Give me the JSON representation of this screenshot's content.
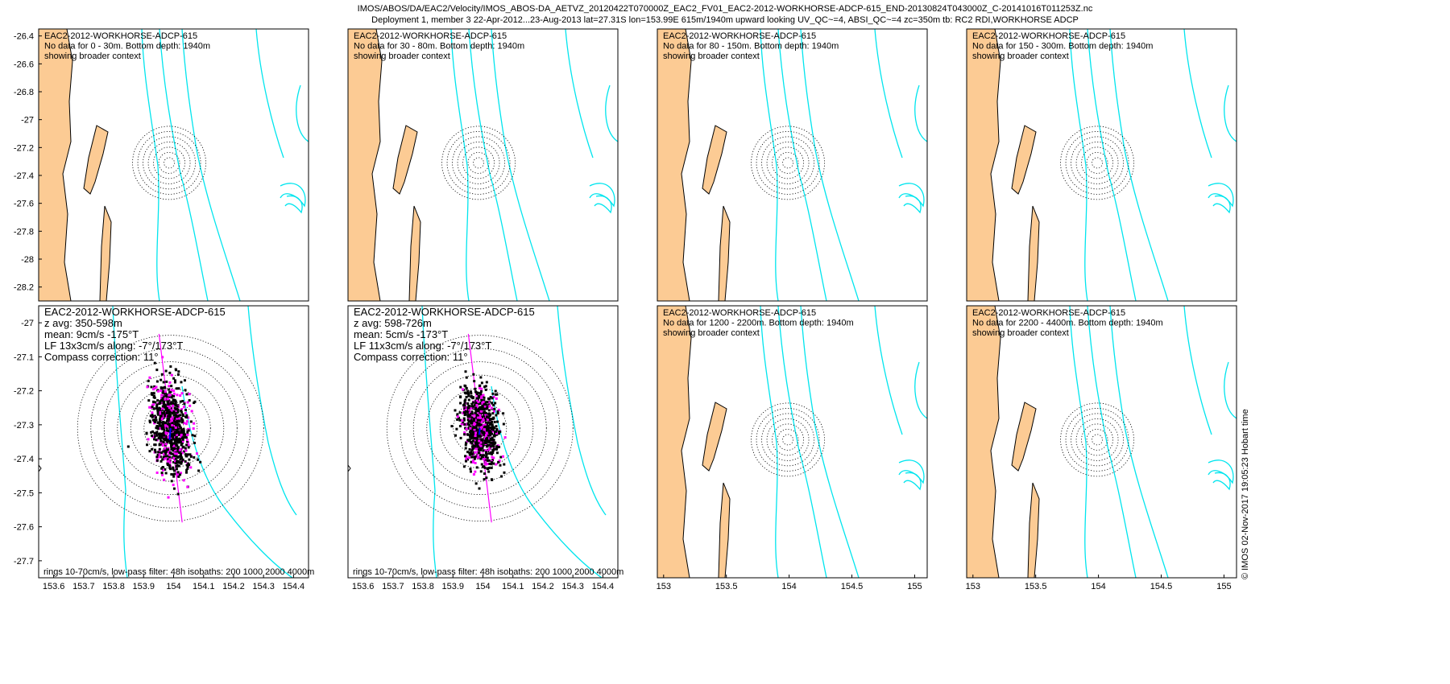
{
  "header": {
    "line1": "IMOS/ABOS/DA/EAC2/Velocity/IMOS_ABOS-DA_AETVZ_20120422T070000Z_EAC2_FV01_EAC2-2012-WORKHORSE-ADCP-615_END-20130824T043000Z_C-20141016T011253Z.nc",
    "line2": "Deployment 1, member 3 22-Apr-2012...23-Aug-2013 lat=27.31S lon=153.99E 615m/1940m upward looking UV_QC~=4, ABSI_QC~=4 zc=350m tb: RC2 RDI,WORKHORSE ADCP"
  },
  "credit": "© IMOS 02-Nov-2017 19:05:23 Hobart time",
  "colors": {
    "land": "#fccb94",
    "isobath": "#00e5ee",
    "ellipse": "#ff00ff",
    "points": "#000000",
    "mean": "#0000ff"
  },
  "chart_data": [
    {
      "type": "scatter",
      "panel": "map",
      "lines": [
        "EAC2-2012-WORKHORSE-ADCP-615",
        "No data for 0 - 30m. Bottom depth: 1940m",
        "showing broader context"
      ],
      "xlim": [
        152.95,
        155.1
      ],
      "ylim": [
        -28.3,
        -26.35
      ],
      "xticks": [],
      "yticks": [
        -26.4,
        -26.6,
        -26.8,
        -27,
        -27.2,
        -27.4,
        -27.6,
        -27.8,
        -28,
        -28.2
      ],
      "ytick_labels": [
        "-26.4",
        "-26.6",
        "-26.8",
        "-27",
        "-27.2",
        "-27.4",
        "-27.6",
        "-27.8",
        "-28",
        "-28.2"
      ]
    },
    {
      "type": "scatter",
      "panel": "map",
      "lines": [
        "EAC2-2012-WORKHORSE-ADCP-615",
        "No data for 30 - 80m. Bottom depth: 1940m",
        "showing broader context"
      ],
      "xlim": [
        152.95,
        155.1
      ],
      "ylim": [
        -28.3,
        -26.35
      ],
      "xticks": [],
      "yticks": []
    },
    {
      "type": "scatter",
      "panel": "map",
      "lines": [
        "EAC2-2012-WORKHORSE-ADCP-615",
        "No data for 80 - 150m. Bottom depth: 1940m",
        "showing broader context"
      ],
      "xlim": [
        152.95,
        155.1
      ],
      "ylim": [
        -28.3,
        -26.35
      ],
      "xticks": [],
      "yticks": []
    },
    {
      "type": "scatter",
      "panel": "map",
      "lines": [
        "EAC2-2012-WORKHORSE-ADCP-615",
        "No data for 150 - 300m. Bottom depth: 1940m",
        "showing broader context"
      ],
      "xlim": [
        152.95,
        155.1
      ],
      "ylim": [
        -28.3,
        -26.35
      ],
      "xticks": [],
      "yticks": []
    },
    {
      "type": "scatter",
      "panel": "zoom",
      "lines": [
        "EAC2-2012-WORKHORSE-ADCP-615",
        "z avg: 350-598m",
        "mean: 9cm/s -175°T",
        "LF 13x3cm/s along: -7°/173°T",
        "Compass correction: 11°"
      ],
      "footer": "rings 10-70cm/s, low-pass filter: 48h isobaths: 200 1000 2000 4000m",
      "mean_speed_cms": 9,
      "mean_dir_deg": -175,
      "ellipse_major_cms": 13,
      "ellipse_minor_cms": 3,
      "along_dir_deg": -7,
      "xlim": [
        153.55,
        154.45
      ],
      "ylim": [
        -27.75,
        -26.95
      ],
      "xticks": [
        153.6,
        153.7,
        153.8,
        153.9,
        154,
        154.1,
        154.2,
        154.3,
        154.4
      ],
      "xtick_labels": [
        "153.6",
        "153.7",
        "153.8",
        "153.9",
        "154",
        "154.1",
        "154.2",
        "154.3",
        "154.4"
      ],
      "yticks": [
        -27,
        -27.1,
        -27.2,
        -27.3,
        -27.4,
        -27.5,
        -27.6,
        -27.7
      ],
      "ytick_labels": [
        "-27",
        "-27.1",
        "-27.2",
        "-27.3",
        "-27.4",
        "-27.5",
        "-27.6",
        "-27.7"
      ],
      "rings_cms": [
        10,
        20,
        30,
        40,
        50,
        60,
        70
      ],
      "center": [
        153.99,
        -27.31
      ]
    },
    {
      "type": "scatter",
      "panel": "zoom",
      "lines": [
        "EAC2-2012-WORKHORSE-ADCP-615",
        "z avg: 598-726m",
        "mean: 5cm/s -173°T",
        "LF 11x3cm/s along: -7°/173°T",
        "Compass correction: 11°"
      ],
      "footer": "rings 10-70cm/s, low-pass filter: 48h isobaths: 200 1000 2000 4000m",
      "mean_speed_cms": 5,
      "mean_dir_deg": -173,
      "ellipse_major_cms": 11,
      "ellipse_minor_cms": 3,
      "along_dir_deg": -7,
      "xlim": [
        153.55,
        154.45
      ],
      "ylim": [
        -27.75,
        -26.95
      ],
      "xticks": [
        153.6,
        153.7,
        153.8,
        153.9,
        154,
        154.1,
        154.2,
        154.3,
        154.4
      ],
      "xtick_labels": [
        "153.6",
        "153.7",
        "153.8",
        "153.9",
        "154",
        "154.1",
        "154.2",
        "154.3",
        "154.4"
      ],
      "yticks": [],
      "rings_cms": [
        10,
        20,
        30,
        40,
        50,
        60,
        70
      ],
      "center": [
        153.99,
        -27.31
      ]
    },
    {
      "type": "scatter",
      "panel": "map",
      "lines": [
        "EAC2-2012-WORKHORSE-ADCP-615",
        "No data for 1200 - 2200m. Bottom depth: 1940m",
        "showing broader context"
      ],
      "xlim": [
        152.95,
        155.1
      ],
      "ylim": [
        -28.3,
        -26.35
      ],
      "xticks": [
        153,
        153.5,
        154,
        154.5,
        155
      ],
      "xtick_labels": [
        "153",
        "153.5",
        "154",
        "154.5",
        "155"
      ],
      "yticks": []
    },
    {
      "type": "scatter",
      "panel": "map",
      "lines": [
        "EAC2-2012-WORKHORSE-ADCP-615",
        "No data for 2200 - 4400m. Bottom depth: 1940m",
        "showing broader context"
      ],
      "xlim": [
        152.95,
        155.1
      ],
      "ylim": [
        -28.3,
        -26.35
      ],
      "xticks": [
        153,
        153.5,
        154,
        154.5,
        155
      ],
      "xtick_labels": [
        "153",
        "153.5",
        "154",
        "154.5",
        "155"
      ],
      "yticks": []
    }
  ]
}
